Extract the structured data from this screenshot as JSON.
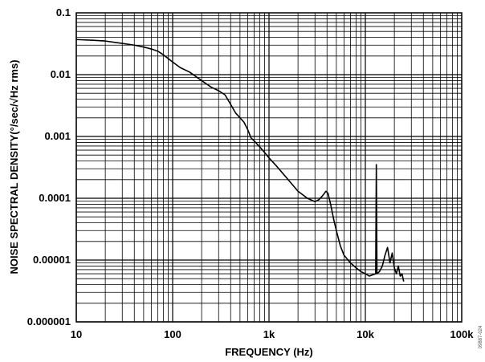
{
  "chart_data": {
    "type": "line",
    "title": "",
    "xlabel": "FREQUENCY (Hz)",
    "ylabel": "NOISE SPECTRAL DENSITY(°/sec/√Hz rms)",
    "x_scale": "log",
    "y_scale": "log",
    "xlim": [
      10,
      100000
    ],
    "ylim": [
      1e-06,
      0.1
    ],
    "grid": true,
    "x_ticks": [
      "10",
      "100",
      "1k",
      "10k",
      "100k"
    ],
    "y_ticks": [
      "0.1",
      "0.01",
      "0.001",
      "0.0001",
      "0.00001",
      "0.000001"
    ],
    "series": [
      {
        "x": [
          10,
          15,
          20,
          30,
          40,
          50,
          60,
          70,
          80,
          100,
          120,
          150,
          200,
          250,
          300,
          350,
          400,
          450,
          500,
          550,
          600,
          650,
          700,
          800,
          900,
          1000,
          1200,
          1500,
          2000,
          2500,
          3000,
          3300,
          3600,
          3900,
          4100,
          4400,
          4700,
          5000,
          5500,
          6000,
          7000,
          8000,
          9000,
          10000,
          11000,
          12000,
          12800,
          13000,
          13200,
          14000,
          15000,
          16000,
          17000,
          18000,
          19000,
          20000,
          21000,
          22000,
          23000,
          24000,
          25000
        ],
        "y": [
          0.037,
          0.036,
          0.035,
          0.032,
          0.03,
          0.028,
          0.026,
          0.024,
          0.021,
          0.016,
          0.013,
          0.011,
          0.008,
          0.0063,
          0.0055,
          0.0047,
          0.0033,
          0.0024,
          0.002,
          0.0017,
          0.0013,
          0.00095,
          0.00085,
          0.00068,
          0.00055,
          0.00045,
          0.00033,
          0.00022,
          0.00013,
          0.0001,
          8.8e-05,
          9.5e-05,
          0.00011,
          0.00013,
          0.00012,
          7.5e-05,
          4.5e-05,
          3e-05,
          1.7e-05,
          1.2e-05,
          9e-06,
          7.5e-06,
          6.5e-06,
          6e-06,
          5.5e-06,
          5.8e-06,
          6e-06,
          0.00035,
          6e-06,
          6.5e-06,
          8e-06,
          1.2e-05,
          1.6e-05,
          9e-06,
          1.3e-05,
          7.5e-06,
          6e-06,
          8e-06,
          5.5e-06,
          6e-06,
          4.5e-06
        ]
      }
    ]
  },
  "figure_id": "09887-024"
}
